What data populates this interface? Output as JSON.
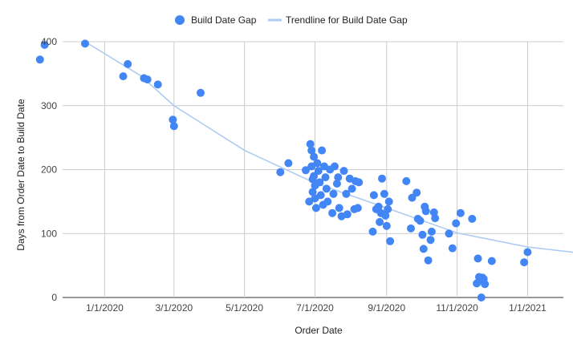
{
  "chart_data": {
    "type": "scatter",
    "title": "",
    "xlabel": "Order Date",
    "ylabel": "Days from Order Date to Build Date",
    "x_ticks": [
      "1/1/2020",
      "3/1/2020",
      "5/1/2020",
      "7/1/2020",
      "9/1/2020",
      "11/1/2020",
      "1/1/2021"
    ],
    "y_ticks": [
      "0",
      "100",
      "200",
      "300",
      "400"
    ],
    "xlim": [
      "2019-11-03",
      "2021-02-18"
    ],
    "ylim": [
      0,
      400
    ],
    "grid": true,
    "legend_position": "top",
    "colors": {
      "points": "#4285f4",
      "trendline": "#aecbf2"
    },
    "series": [
      {
        "name": "Build Date Gap",
        "points": [
          [
            "2019-11-06",
            372
          ],
          [
            "2019-11-10",
            395
          ],
          [
            "2019-12-15",
            397
          ],
          [
            "2020-01-17",
            346
          ],
          [
            "2020-01-21",
            365
          ],
          [
            "2020-02-04",
            343
          ],
          [
            "2020-02-07",
            341
          ],
          [
            "2020-02-16",
            333
          ],
          [
            "2020-02-29",
            278
          ],
          [
            "2020-03-01",
            268
          ],
          [
            "2020-03-24",
            320
          ],
          [
            "2020-06-01",
            196
          ],
          [
            "2020-06-08",
            210
          ],
          [
            "2020-06-23",
            199
          ],
          [
            "2020-06-26",
            150
          ],
          [
            "2020-06-27",
            240
          ],
          [
            "2020-06-28",
            230
          ],
          [
            "2020-06-28",
            205
          ],
          [
            "2020-06-29",
            185
          ],
          [
            "2020-06-29",
            165
          ],
          [
            "2020-06-30",
            220
          ],
          [
            "2020-06-30",
            190
          ],
          [
            "2020-07-01",
            175
          ],
          [
            "2020-07-01",
            155
          ],
          [
            "2020-07-02",
            140
          ],
          [
            "2020-07-03",
            210
          ],
          [
            "2020-07-04",
            198
          ],
          [
            "2020-07-05",
            180
          ],
          [
            "2020-07-06",
            160
          ],
          [
            "2020-07-07",
            230
          ],
          [
            "2020-07-08",
            145
          ],
          [
            "2020-07-09",
            205
          ],
          [
            "2020-07-10",
            188
          ],
          [
            "2020-07-11",
            170
          ],
          [
            "2020-07-12",
            150
          ],
          [
            "2020-07-14",
            200
          ],
          [
            "2020-07-16",
            132
          ],
          [
            "2020-07-17",
            162
          ],
          [
            "2020-07-18",
            205
          ],
          [
            "2020-07-20",
            178
          ],
          [
            "2020-07-21",
            188
          ],
          [
            "2020-07-22",
            140
          ],
          [
            "2020-07-24",
            127
          ],
          [
            "2020-07-26",
            198
          ],
          [
            "2020-07-28",
            162
          ],
          [
            "2020-07-29",
            130
          ],
          [
            "2020-07-31",
            186
          ],
          [
            "2020-08-02",
            170
          ],
          [
            "2020-08-04",
            138
          ],
          [
            "2020-08-05",
            182
          ],
          [
            "2020-08-07",
            140
          ],
          [
            "2020-08-08",
            180
          ],
          [
            "2020-08-20",
            103
          ],
          [
            "2020-08-21",
            160
          ],
          [
            "2020-08-23",
            138
          ],
          [
            "2020-08-25",
            142
          ],
          [
            "2020-08-26",
            118
          ],
          [
            "2020-08-27",
            132
          ],
          [
            "2020-08-28",
            186
          ],
          [
            "2020-08-30",
            162
          ],
          [
            "2020-08-31",
            128
          ],
          [
            "2020-09-01",
            112
          ],
          [
            "2020-09-02",
            138
          ],
          [
            "2020-09-03",
            150
          ],
          [
            "2020-09-04",
            88
          ],
          [
            "2020-09-18",
            182
          ],
          [
            "2020-09-22",
            108
          ],
          [
            "2020-09-23",
            156
          ],
          [
            "2020-09-27",
            164
          ],
          [
            "2020-09-28",
            123
          ],
          [
            "2020-09-30",
            120
          ],
          [
            "2020-10-02",
            98
          ],
          [
            "2020-10-03",
            76
          ],
          [
            "2020-10-04",
            142
          ],
          [
            "2020-10-05",
            135
          ],
          [
            "2020-10-07",
            58
          ],
          [
            "2020-10-09",
            90
          ],
          [
            "2020-10-10",
            103
          ],
          [
            "2020-10-12",
            133
          ],
          [
            "2020-10-13",
            124
          ],
          [
            "2020-10-25",
            100
          ],
          [
            "2020-10-28",
            77
          ],
          [
            "2020-10-31",
            116
          ],
          [
            "2020-11-04",
            132
          ],
          [
            "2020-11-14",
            123
          ],
          [
            "2020-11-18",
            22
          ],
          [
            "2020-11-19",
            61
          ],
          [
            "2020-11-20",
            32
          ],
          [
            "2020-11-21",
            27
          ],
          [
            "2020-11-22",
            0
          ],
          [
            "2020-11-23",
            31
          ],
          [
            "2020-11-24",
            29
          ],
          [
            "2020-11-25",
            21
          ],
          [
            "2020-12-01",
            57
          ],
          [
            "2020-12-29",
            55
          ],
          [
            "2021-01-01",
            71
          ]
        ]
      },
      {
        "name": "Trendline for Build Date Gap",
        "curve": [
          [
            "2019-12-15",
            400
          ],
          [
            "2020-02-01",
            347
          ],
          [
            "2020-03-01",
            300
          ],
          [
            "2020-05-01",
            230
          ],
          [
            "2020-07-01",
            179
          ],
          [
            "2020-09-01",
            140
          ],
          [
            "2020-11-01",
            101
          ],
          [
            "2021-01-01",
            79
          ],
          [
            "2021-02-18",
            69
          ]
        ]
      }
    ]
  }
}
